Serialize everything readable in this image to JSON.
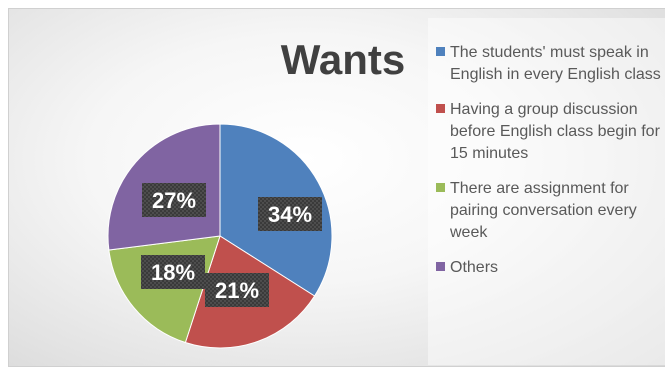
{
  "chart_data": {
    "type": "pie",
    "title": "Wants",
    "categories": [
      "The students' must speak in English in every English class",
      "Having a group discussion before English class begin for 15 minutes",
      "There are assignment for pairing conversation every week",
      "Others"
    ],
    "values": [
      34,
      21,
      18,
      27
    ],
    "data_labels": [
      "34%",
      "21%",
      "18%",
      "27%"
    ],
    "colors": [
      "#4f81bd",
      "#c0504d",
      "#9bbb59",
      "#8064a2"
    ],
    "legend_position": "right",
    "start_angle": "12 o'clock, clockwise"
  }
}
